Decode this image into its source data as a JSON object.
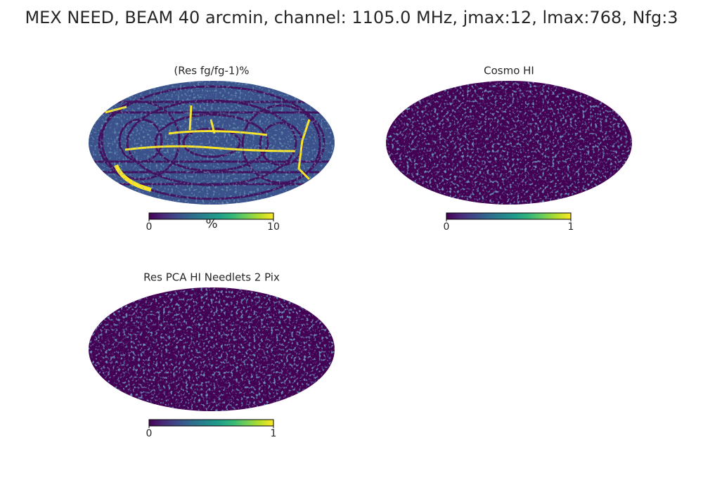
{
  "title": "MEX NEED, BEAM 40 arcmin, channel: 1105.0 MHz, jmax:12, lmax:768, Nfg:3",
  "panels": [
    {
      "title": "(Res fg/fg-1)%",
      "colorbar": {
        "lim": [
          0,
          10
        ],
        "ticks": [
          0,
          10
        ],
        "unit": "%"
      }
    },
    {
      "title": "Cosmo HI",
      "colorbar": {
        "lim": [
          0,
          1
        ],
        "ticks": [
          0,
          1
        ]
      }
    },
    {
      "title": "Res PCA HI Needlets 2 Pix",
      "colorbar": {
        "lim": [
          0,
          1
        ],
        "ticks": [
          0,
          1
        ]
      }
    }
  ]
}
